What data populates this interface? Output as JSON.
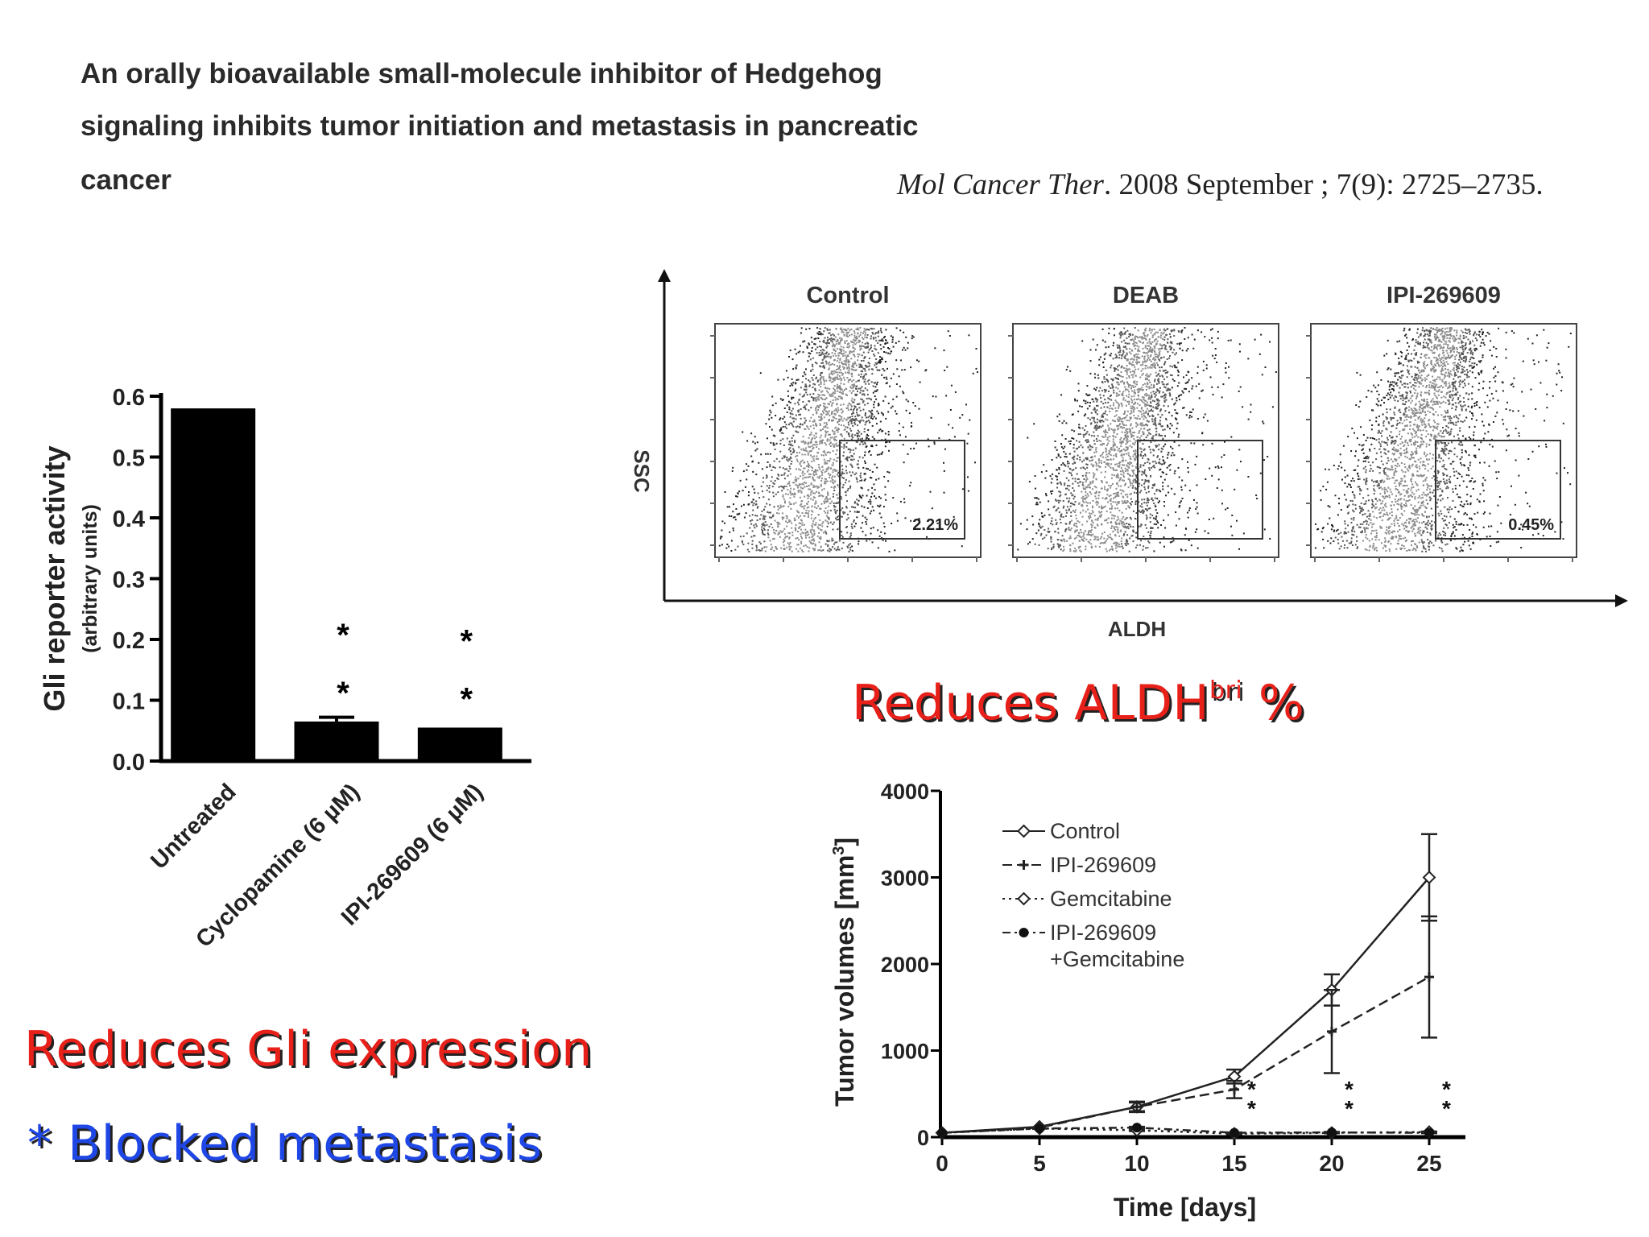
{
  "paper": {
    "title_lines": [
      "An orally bioavailable small-molecule inhibitor of Hedgehog",
      "signaling inhibits tumor initiation and metastasis in pancreatic",
      "cancer"
    ],
    "citation_journal": "Mol Cancer Ther",
    "citation_rest": ". 2008 September ; 7(9): 2725–2735."
  },
  "callouts": {
    "aldh_main": "Reduces ALDH",
    "aldh_sup": "bri",
    "aldh_pct": " %",
    "gli": "Reduces Gli expression",
    "metastasis": "* Blocked metastasis"
  },
  "chart_data": [
    {
      "type": "bar",
      "ylabel": "Gli reporter activity",
      "ylabel_sub": "(arbitrary units)",
      "categories": [
        "Untreated",
        "Cyclopamine (6 µM)",
        "IPI-269609 (6 µM)"
      ],
      "values": [
        0.58,
        0.065,
        0.055
      ],
      "errors": [
        0,
        0.007,
        0
      ],
      "ylim": [
        0,
        0.6
      ],
      "yticks": [
        "0.0",
        "0.1",
        "0.2",
        "0.3",
        "0.4",
        "0.5",
        "0.6"
      ],
      "significance": [
        "",
        "* *",
        "* *"
      ],
      "bar_color": "#000000"
    },
    {
      "type": "scatter",
      "xlabel": "ALDH",
      "ylabel": "SSC",
      "panels": [
        {
          "name": "Control",
          "gate_label": "2.21%"
        },
        {
          "name": "DEAB",
          "gate_label": ""
        },
        {
          "name": "IPI-269609",
          "gate_label": "0.45%"
        }
      ]
    },
    {
      "type": "line",
      "xlabel": "Time [days]",
      "ylabel": "Tumor volumes [mm",
      "ylabel_sup": "3",
      "ylabel_end": "]",
      "x": [
        0,
        5,
        10,
        15,
        20,
        25
      ],
      "xlim": [
        0,
        25
      ],
      "ylim": [
        0,
        4000
      ],
      "xticks": [
        "0",
        "5",
        "10",
        "15",
        "20",
        "25"
      ],
      "yticks": [
        "0",
        "1000",
        "2000",
        "3000",
        "4000"
      ],
      "series": [
        {
          "name": "Control",
          "values": [
            50,
            120,
            350,
            700,
            1700,
            3000
          ],
          "errors": [
            0,
            0,
            60,
            80,
            180,
            500
          ],
          "style": "solid",
          "marker": "diamond-open"
        },
        {
          "name": "IPI-269609",
          "values": [
            50,
            110,
            350,
            550,
            1220,
            1850
          ],
          "errors": [
            0,
            0,
            50,
            100,
            480,
            700
          ],
          "style": "dashed",
          "marker": "plus"
        },
        {
          "name": "Gemcitabine",
          "values": [
            50,
            100,
            80,
            40,
            50,
            60
          ],
          "errors": [
            0,
            0,
            10,
            5,
            5,
            5
          ],
          "style": "dotted",
          "marker": "diamond-open"
        },
        {
          "name": "IPI-269609\n+Gemcitabine",
          "values": [
            50,
            100,
            110,
            50,
            55,
            50
          ],
          "errors": [
            0,
            0,
            10,
            5,
            5,
            5
          ],
          "style": "dashdot",
          "marker": "circle"
        }
      ],
      "significance": [
        {
          "x": 15,
          "label": "* *"
        },
        {
          "x": 20,
          "label": "* *"
        },
        {
          "x": 25,
          "label": "* *"
        }
      ]
    }
  ]
}
